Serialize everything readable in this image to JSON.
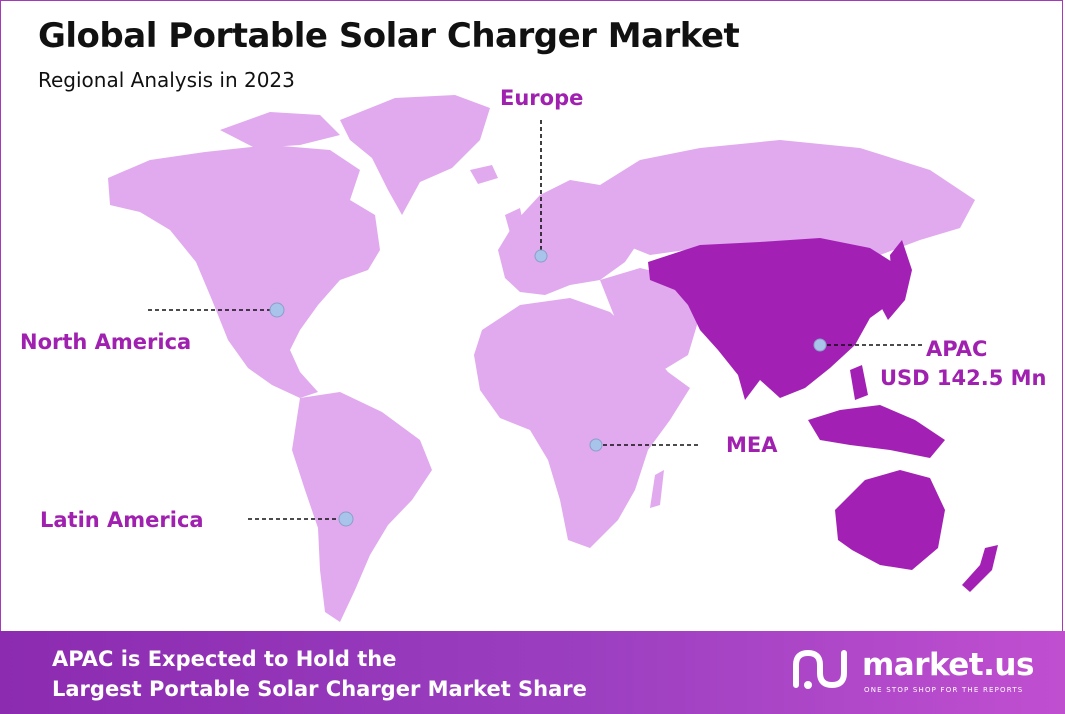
{
  "header": {
    "title": "Global Portable Solar Charger Market",
    "subtitle": "Regional Analysis in 2023"
  },
  "regions": {
    "europe": {
      "label": "Europe"
    },
    "north_america": {
      "label": "North America"
    },
    "latin_america": {
      "label": "Latin America"
    },
    "mea": {
      "label": "MEA"
    },
    "apac": {
      "label": "APAC",
      "value": "USD 142.5 Mn",
      "highlighted": true
    }
  },
  "footer": {
    "line1": "APAC is Expected to Hold the",
    "line2": "Largest Portable Solar Charger Market Share"
  },
  "brand": {
    "name": "market.us",
    "tagline": "ONE STOP SHOP FOR THE REPORTS"
  },
  "colors": {
    "land": "#e1a9ee",
    "apac": "#a320b5",
    "accent": "#a020b0",
    "marker": "#a9c4ea"
  }
}
